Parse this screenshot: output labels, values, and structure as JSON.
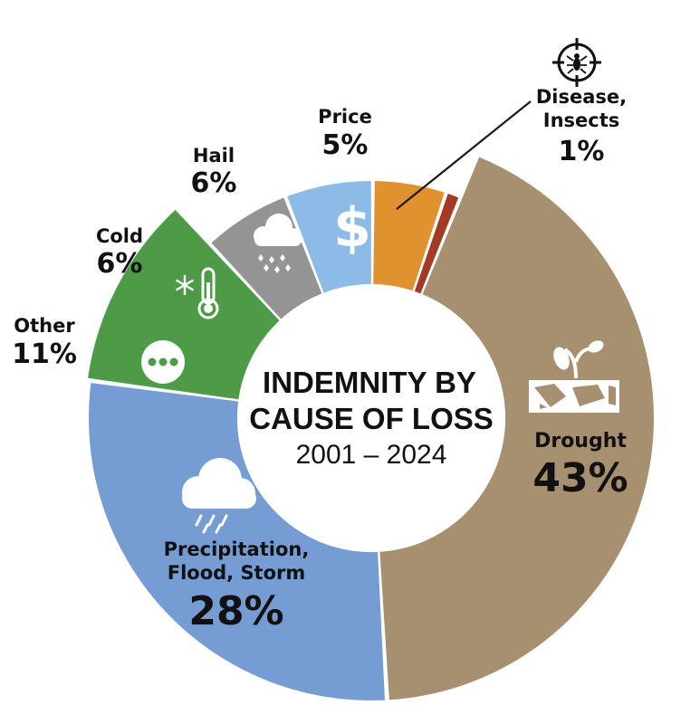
{
  "chart_data": {
    "type": "pie",
    "title_line1": "INDEMNITY BY",
    "title_line2": "CAUSE OF LOSS",
    "subtitle": "2001 – 2024",
    "slices": [
      {
        "key": "drought",
        "label_lines": [
          "Drought"
        ],
        "percent_text": "43%",
        "value": 43,
        "color": "#A6906F",
        "icon": "drought-sprout-icon"
      },
      {
        "key": "precipitation",
        "label_lines": [
          "Precipitation,",
          "Flood, Storm"
        ],
        "percent_text": "28%",
        "value": 28,
        "color": "#769DD3",
        "icon": "rain-cloud-icon"
      },
      {
        "key": "other",
        "label_lines": [
          "Other"
        ],
        "percent_text": "11%",
        "value": 11,
        "color": "#4E9B47",
        "icon": "more-dots-icon"
      },
      {
        "key": "cold",
        "label_lines": [
          "Cold"
        ],
        "percent_text": "6%",
        "value": 6,
        "color": "#949494",
        "icon": "snowflake-thermometer-icon"
      },
      {
        "key": "hail",
        "label_lines": [
          "Hail"
        ],
        "percent_text": "6%",
        "value": 6,
        "color": "#8DBBE8",
        "icon": "hail-cloud-icon"
      },
      {
        "key": "price",
        "label_lines": [
          "Price"
        ],
        "percent_text": "5%",
        "value": 5,
        "color": "#E0922E",
        "icon": "dollar-icon"
      },
      {
        "key": "disease",
        "label_lines": [
          "Disease,",
          "Insects"
        ],
        "percent_text": "1%",
        "value": 1,
        "color": "#A33A26",
        "icon": "insect-target-icon"
      }
    ]
  }
}
